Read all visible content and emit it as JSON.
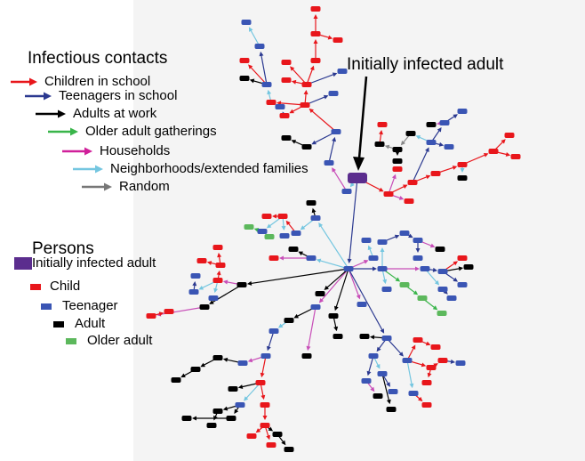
{
  "contacts_legend": {
    "title": "Infectious contacts",
    "items": [
      {
        "label": "Children in school",
        "color": "#e8161b"
      },
      {
        "label": "Teenagers in school",
        "color": "#2b3990"
      },
      {
        "label": "Adults at work",
        "color": "#000000"
      },
      {
        "label": "Older adult gatherings",
        "color": "#39b54a"
      },
      {
        "label": "Households",
        "color": "#d0209a"
      },
      {
        "label": "Neighborhoods/extended families",
        "color": "#74c6e0"
      },
      {
        "label": "Random",
        "color": "#777777"
      }
    ]
  },
  "persons_legend": {
    "title": "Persons",
    "items": [
      {
        "label": "Initially infected adult",
        "color": "#5b2d8e"
      },
      {
        "label": "Child",
        "color": "#e8161b"
      },
      {
        "label": "Teenager",
        "color": "#3a55b4"
      },
      {
        "label": "Adult",
        "color": "#000000"
      },
      {
        "label": "Older adult",
        "color": "#5cb85c"
      }
    ]
  },
  "annotation": "Initially infected adult"
}
